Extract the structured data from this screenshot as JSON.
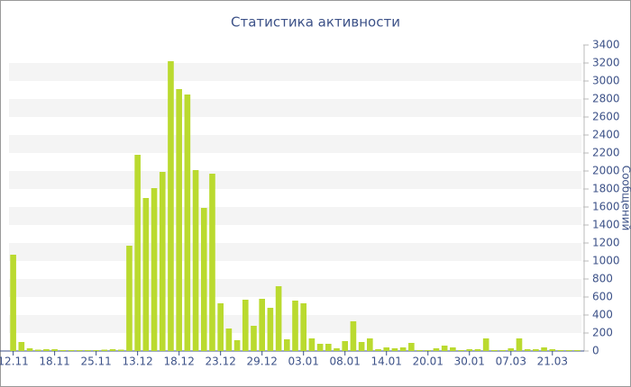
{
  "chart_data": {
    "type": "bar",
    "title": "Статистика активности",
    "y_label": "Сообщений",
    "categories": [
      "12.11",
      null,
      null,
      null,
      null,
      "18.11",
      null,
      null,
      null,
      null,
      "25.11",
      null,
      null,
      null,
      null,
      "13.12",
      null,
      null,
      null,
      null,
      "18.12",
      null,
      null,
      null,
      null,
      "23.12",
      null,
      null,
      null,
      null,
      "29.12",
      null,
      null,
      null,
      null,
      "03.01",
      null,
      null,
      null,
      null,
      "08.01",
      null,
      null,
      null,
      null,
      "14.01",
      null,
      null,
      null,
      null,
      "20.01",
      null,
      null,
      null,
      null,
      "30.01",
      null,
      null,
      null,
      null,
      "07.03",
      null,
      null,
      null,
      null,
      "21.03",
      null,
      null,
      null
    ],
    "values": [
      1070,
      100,
      30,
      15,
      20,
      20,
      10,
      10,
      10,
      10,
      10,
      15,
      20,
      15,
      1170,
      2180,
      1700,
      1810,
      1990,
      3220,
      2910,
      2850,
      2010,
      1590,
      1970,
      530,
      250,
      120,
      570,
      280,
      580,
      480,
      720,
      130,
      560,
      530,
      140,
      80,
      80,
      30,
      110,
      330,
      100,
      140,
      20,
      40,
      30,
      40,
      90,
      10,
      10,
      30,
      60,
      40,
      10,
      20,
      20,
      140,
      10,
      10,
      30,
      140,
      20,
      20,
      40,
      20,
      10,
      10,
      10
    ],
    "color": "#bada2f",
    "ylim": [
      0,
      3400
    ],
    "yticks": [
      0,
      200,
      400,
      600,
      800,
      1000,
      1200,
      1400,
      1600,
      1800,
      2000,
      2200,
      2400,
      2600,
      2800,
      3000,
      3200,
      3400
    ],
    "y_axis_side": "right",
    "grid": true
  }
}
